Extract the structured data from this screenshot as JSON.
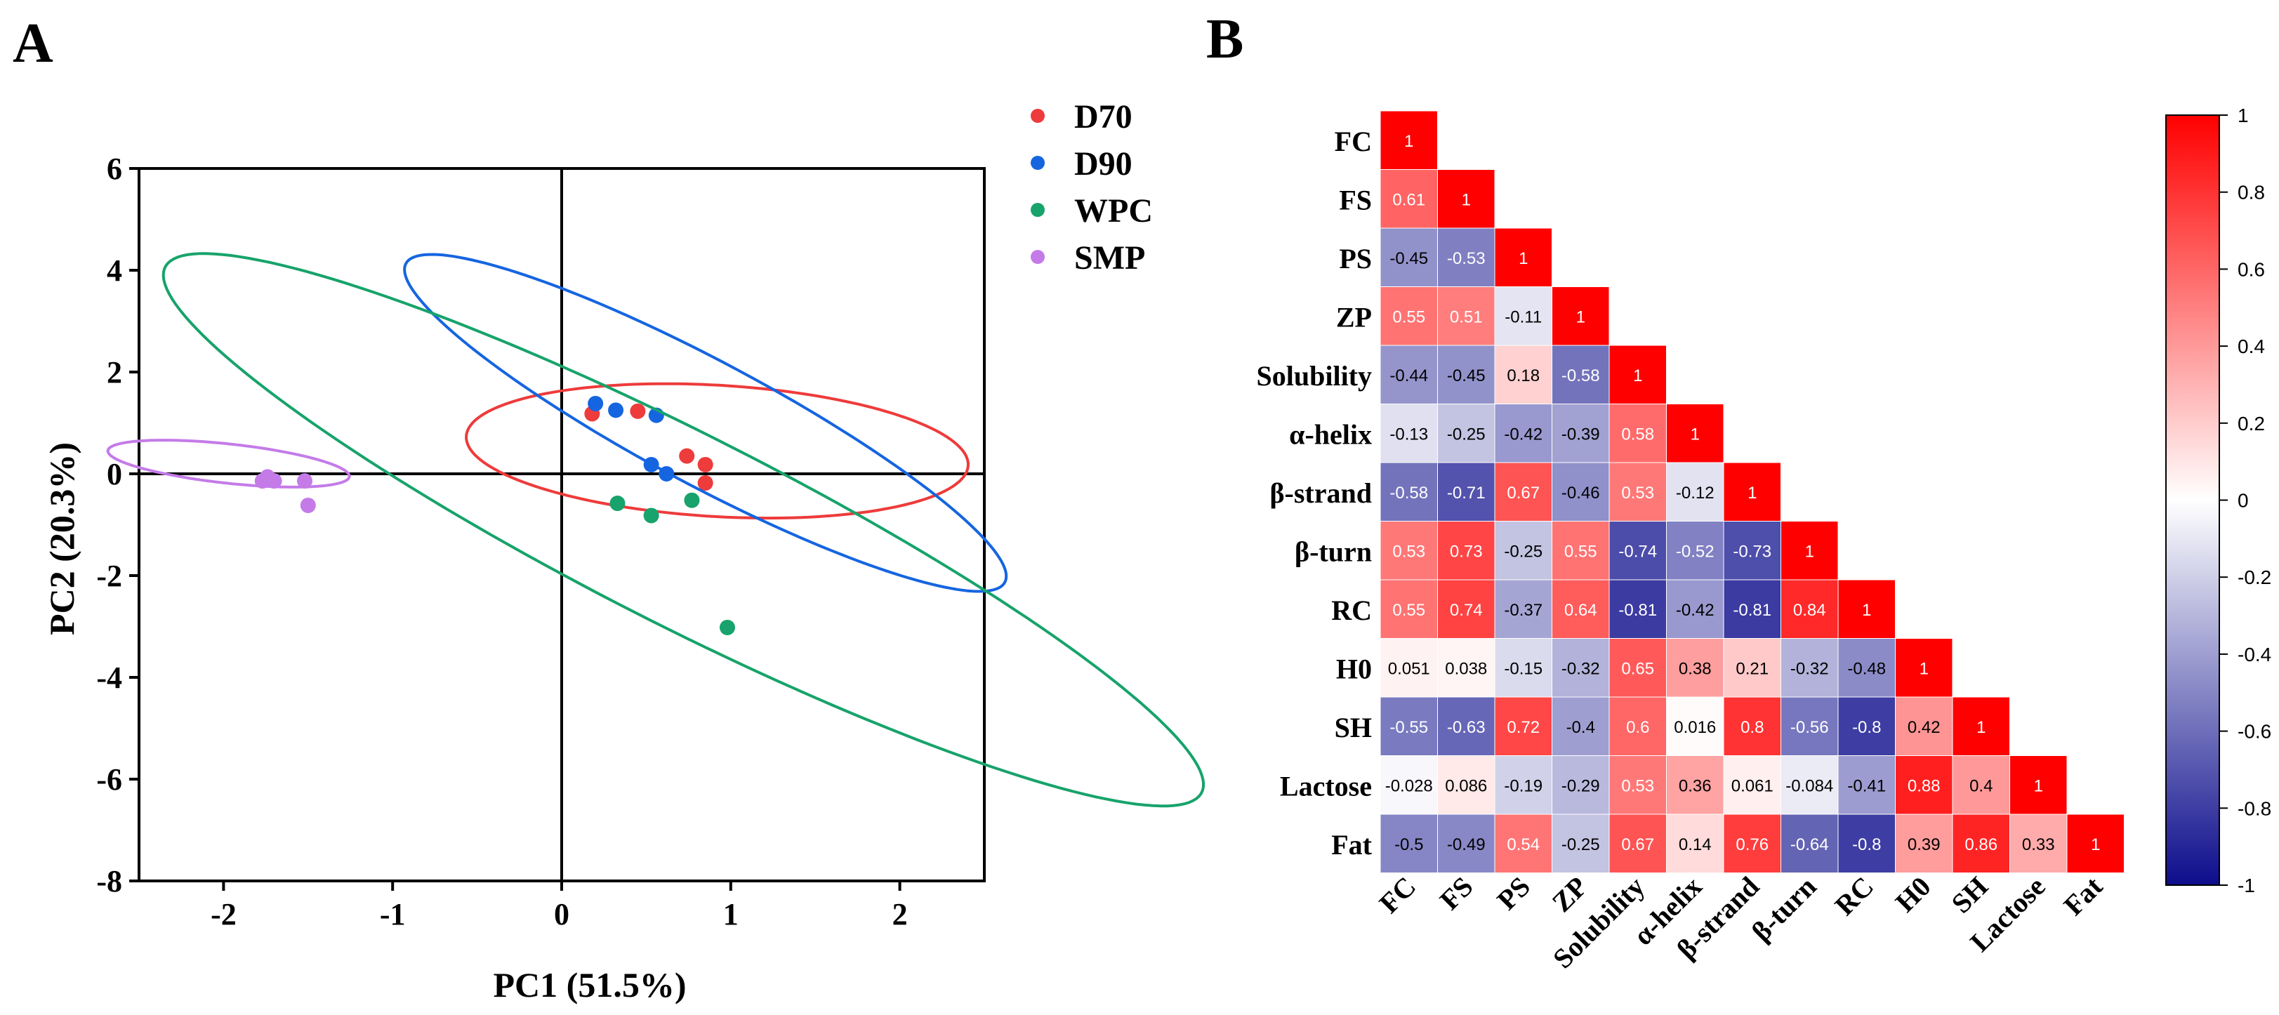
{
  "panels": {
    "a_label": "A",
    "b_label": "B"
  },
  "chart_data": [
    {
      "type": "scatter",
      "title": "",
      "xlabel": "PC1 (51.5%)",
      "ylabel": "PC2 (20.3%)",
      "xlim": [
        -2.5,
        2.5
      ],
      "ylim": [
        -8,
        6
      ],
      "xticks": [
        -2,
        -1,
        0,
        1,
        2
      ],
      "yticks": [
        -8,
        -6,
        -4,
        -2,
        0,
        2,
        4,
        6
      ],
      "legend_position": "top-right",
      "series": [
        {
          "name": "D70",
          "color": "#ee3b3b",
          "points": [
            [
              0.18,
              1.18
            ],
            [
              0.45,
              1.23
            ],
            [
              0.74,
              0.35
            ],
            [
              0.85,
              0.18
            ],
            [
              0.85,
              -0.18
            ]
          ],
          "ellipse": {
            "cx": 0.92,
            "cy": 0.45,
            "rx": 1.56,
            "ry": 1.23,
            "angle_deg": -30
          }
        },
        {
          "name": "D90",
          "color": "#1565e0",
          "points": [
            [
              0.2,
              1.38
            ],
            [
              0.32,
              1.25
            ],
            [
              0.56,
              1.15
            ],
            [
              0.53,
              0.18
            ],
            [
              0.62,
              0.0
            ]
          ],
          "ellipse": {
            "cx": 0.85,
            "cy": 1.0,
            "rx": 3.7,
            "ry": 0.66,
            "angle_deg": -63
          }
        },
        {
          "name": "WPC",
          "color": "#17a36b",
          "points": [
            [
              0.33,
              -0.58
            ],
            [
              0.53,
              -0.82
            ],
            [
              0.77,
              -0.52
            ],
            [
              0.98,
              -3.02
            ]
          ],
          "ellipse": {
            "cx": 0.72,
            "cy": -1.1,
            "rx": 6.15,
            "ry": 1.05,
            "angle_deg": -61.5
          }
        },
        {
          "name": "SMP",
          "color": "#c47be8",
          "points": [
            [
              -1.74,
              -0.06
            ],
            [
              -1.77,
              -0.14
            ],
            [
              -1.7,
              -0.14
            ],
            [
              -1.52,
              -0.14
            ],
            [
              -1.5,
              -0.62
            ]
          ],
          "ellipse": {
            "cx": -1.97,
            "cy": 0.2,
            "rx": 0.77,
            "ry": 0.36,
            "angle_deg": -25
          }
        }
      ]
    },
    {
      "type": "heatmap",
      "title": "",
      "labels": [
        "FC",
        "FS",
        "PS",
        "ZP",
        "Solubility",
        "α-helix",
        "β-strand",
        "β-turn",
        "RC",
        "H0",
        "SH",
        "Lactose",
        "Fat"
      ],
      "matrix": [
        [
          "1"
        ],
        [
          "0.61",
          "1"
        ],
        [
          "-0.45",
          "-0.53",
          "1"
        ],
        [
          "0.55",
          "0.51",
          "-0.11",
          "1"
        ],
        [
          "-0.44",
          "-0.45",
          "0.18",
          "-0.58",
          "1"
        ],
        [
          "-0.13",
          "-0.25",
          "-0.42",
          "-0.39",
          "0.58",
          "1"
        ],
        [
          "-0.58",
          "-0.71",
          "0.67",
          "-0.46",
          "0.53",
          "-0.12",
          "1"
        ],
        [
          "0.53",
          "0.73",
          "-0.25",
          "0.55",
          "-0.74",
          "-0.52",
          "-0.73",
          "1"
        ],
        [
          "0.55",
          "0.74",
          "-0.37",
          "0.64",
          "-0.81",
          "-0.42",
          "-0.81",
          "0.84",
          "1"
        ],
        [
          "0.051",
          "0.038",
          "-0.15",
          "-0.32",
          "0.65",
          "0.38",
          "0.21",
          "-0.32",
          "-0.48",
          "1"
        ],
        [
          "-0.55",
          "-0.63",
          "0.72",
          "-0.4",
          "0.6",
          "0.016",
          "0.8",
          "-0.56",
          "-0.8",
          "0.42",
          "1"
        ],
        [
          "-0.028",
          "0.086",
          "-0.19",
          "-0.29",
          "0.53",
          "0.36",
          "0.061",
          "-0.084",
          "-0.41",
          "0.88",
          "0.4",
          "1"
        ],
        [
          "-0.5",
          "-0.49",
          "0.54",
          "-0.25",
          "0.67",
          "0.14",
          "0.76",
          "-0.64",
          "-0.8",
          "0.39",
          "0.86",
          "0.33",
          "1"
        ]
      ],
      "colorbar": {
        "range": [
          -1,
          1
        ],
        "ticks": [
          "1",
          "0.8",
          "0.6",
          "0.4",
          "0.2",
          "0",
          "-0.2",
          "-0.4",
          "-0.6",
          "-0.8",
          "-1"
        ],
        "low_color": "#0d0d8c",
        "mid_color": "#ffffff",
        "high_color": "#ff0000"
      }
    }
  ]
}
